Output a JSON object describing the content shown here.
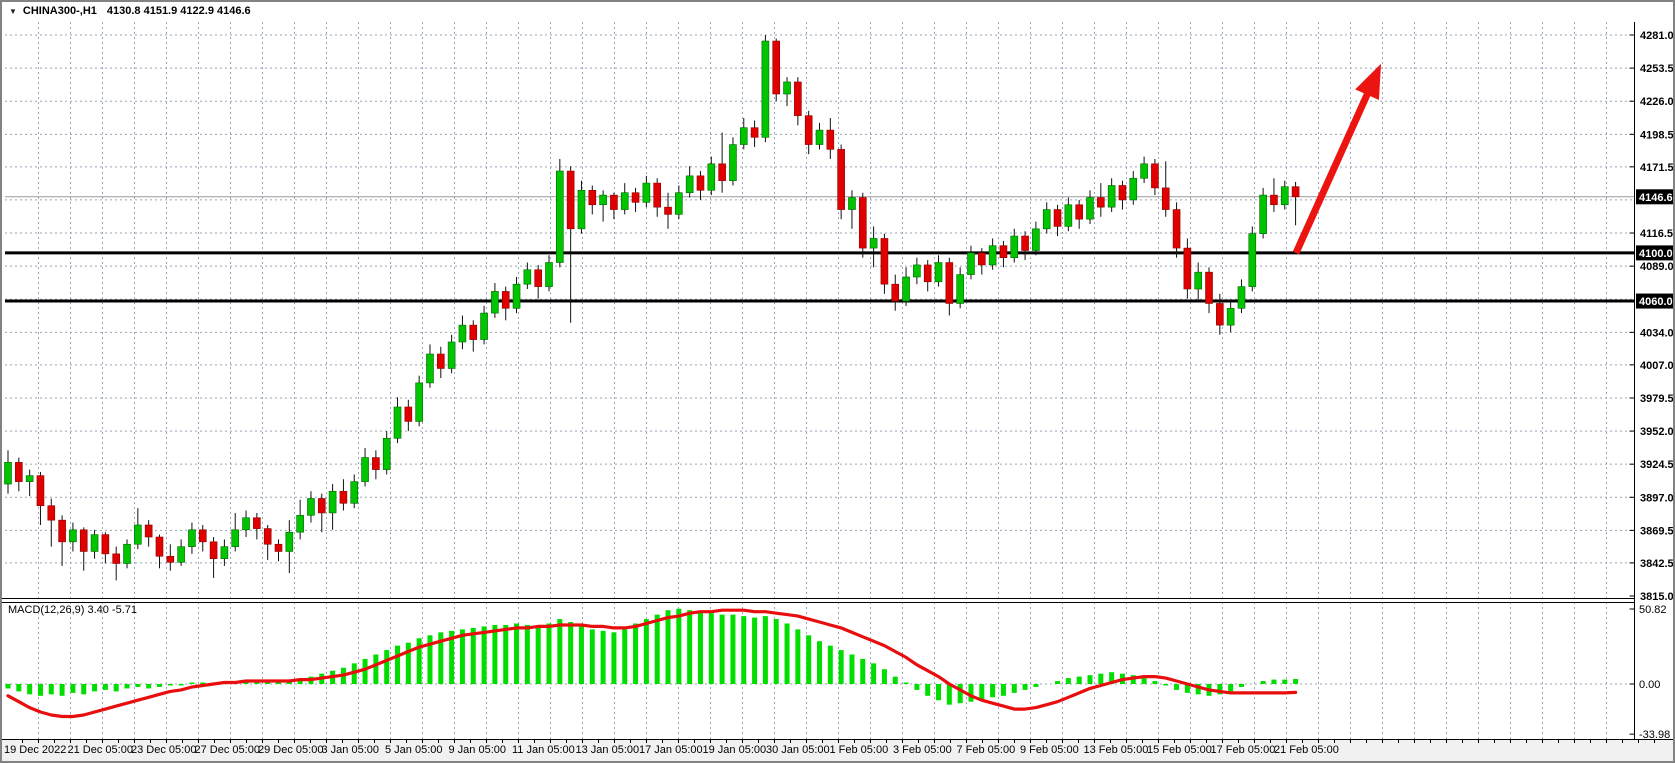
{
  "window": {
    "title": "CHINA300-,H1",
    "ohlc": "4130.8 4151.9 4122.9 4146.6"
  },
  "colors": {
    "bull": "#00C400",
    "bear": "#E00000",
    "wick": "#111111",
    "grid": "#97a5b6",
    "axis": "#000000",
    "macd_hist": "#00DE00",
    "macd_signal": "#E80E0E",
    "level_line": "#000000",
    "current_line": "#9a9a9a",
    "label_bg": "#000000",
    "label_fg": "#ffffff",
    "arrow": "#EC1410",
    "footer_bg": "#f1f1f1"
  },
  "chart_data": {
    "type": "candlestick",
    "symbol": "CHINA300-",
    "timeframe": "H1",
    "open": 4130.8,
    "high": 4151.9,
    "low": 4122.9,
    "close": 4146.6,
    "price_axis": {
      "min": 3815.0,
      "max": 4281.0,
      "labels": [
        {
          "value": 4281.0,
          "label": "4281.0"
        },
        {
          "value": 4253.5,
          "label": "4253.5"
        },
        {
          "value": 4226.0,
          "label": "4226.0"
        },
        {
          "value": 4198.5,
          "label": "4198.5"
        },
        {
          "value": 4171.5,
          "label": "4171.5"
        },
        {
          "value": 4116.5,
          "label": "4116.5"
        },
        {
          "value": 4089.0,
          "label": "4089.0"
        },
        {
          "value": 4034.0,
          "label": "4034.0"
        },
        {
          "value": 4007.0,
          "label": "4007.0"
        },
        {
          "value": 3979.5,
          "label": "3979.5"
        },
        {
          "value": 3952.0,
          "label": "3952.0"
        },
        {
          "value": 3924.5,
          "label": "3924.5"
        },
        {
          "value": 3897.0,
          "label": "3897.0"
        },
        {
          "value": 3869.5,
          "label": "3869.5"
        },
        {
          "value": 3842.5,
          "label": "3842.5"
        },
        {
          "value": 3815.0,
          "label": "3815.0"
        }
      ],
      "hidden_gridline_values": [
        4144.0,
        4061.5
      ]
    },
    "time_axis": {
      "labels": [
        "19 Dec 2022",
        "21 Dec 05:00",
        "23 Dec 05:00",
        "27 Dec 05:00",
        "29 Dec 05:00",
        "3 Jan 05:00",
        "5 Jan 05:00",
        "9 Jan 05:00",
        "11 Jan 05:00",
        "13 Jan 05:00",
        "17 Jan 05:00",
        "19 Jan 05:00",
        "30 Jan 05:00",
        "1 Feb 05:00",
        "3 Feb 05:00",
        "7 Feb 05:00",
        "9 Feb 05:00",
        "13 Feb 05:00",
        "15 Feb 05:00",
        "17 Feb 05:00",
        "21 Feb 05:00"
      ]
    },
    "current_price": {
      "value": 4146.6,
      "label": "4146.6"
    },
    "levels": [
      {
        "value": 4100.0,
        "label": "4100.0"
      },
      {
        "value": 4060.0,
        "label": "4060.0"
      }
    ],
    "annotation_arrow": {
      "direction": "up",
      "from_price": 4100.0,
      "to_price": 4253.0
    },
    "candles": [
      [
        3908,
        3936,
        3900,
        3926
      ],
      [
        3926,
        3930,
        3902,
        3910
      ],
      [
        3910,
        3920,
        3898,
        3915
      ],
      [
        3915,
        3918,
        3874,
        3890
      ],
      [
        3890,
        3896,
        3856,
        3878
      ],
      [
        3878,
        3882,
        3840,
        3860
      ],
      [
        3860,
        3876,
        3852,
        3870
      ],
      [
        3870,
        3872,
        3836,
        3852
      ],
      [
        3852,
        3870,
        3846,
        3866
      ],
      [
        3866,
        3868,
        3842,
        3850
      ],
      [
        3850,
        3856,
        3828,
        3842
      ],
      [
        3842,
        3862,
        3838,
        3858
      ],
      [
        3858,
        3888,
        3854,
        3874
      ],
      [
        3874,
        3878,
        3856,
        3864
      ],
      [
        3864,
        3866,
        3838,
        3848
      ],
      [
        3848,
        3858,
        3836,
        3843
      ],
      [
        3843,
        3862,
        3840,
        3856
      ],
      [
        3856,
        3876,
        3850,
        3870
      ],
      [
        3870,
        3874,
        3852,
        3860
      ],
      [
        3860,
        3864,
        3830,
        3846
      ],
      [
        3846,
        3862,
        3840,
        3856
      ],
      [
        3856,
        3884,
        3852,
        3870
      ],
      [
        3870,
        3886,
        3864,
        3880
      ],
      [
        3880,
        3884,
        3862,
        3871
      ],
      [
        3871,
        3874,
        3845,
        3858
      ],
      [
        3858,
        3862,
        3844,
        3852
      ],
      [
        3852,
        3878,
        3834,
        3868
      ],
      [
        3868,
        3895,
        3862,
        3882
      ],
      [
        3882,
        3902,
        3876,
        3896
      ],
      [
        3896,
        3900,
        3868,
        3884
      ],
      [
        3884,
        3908,
        3870,
        3902
      ],
      [
        3902,
        3912,
        3886,
        3892
      ],
      [
        3892,
        3916,
        3888,
        3910
      ],
      [
        3910,
        3938,
        3906,
        3930
      ],
      [
        3930,
        3936,
        3912,
        3920
      ],
      [
        3920,
        3952,
        3916,
        3946
      ],
      [
        3946,
        3980,
        3942,
        3972
      ],
      [
        3972,
        3978,
        3952,
        3960
      ],
      [
        3960,
        3998,
        3956,
        3992
      ],
      [
        3992,
        4024,
        3988,
        4016
      ],
      [
        4016,
        4022,
        3996,
        4004
      ],
      [
        4004,
        4032,
        4000,
        4026
      ],
      [
        4026,
        4048,
        4020,
        4040
      ],
      [
        4040,
        4044,
        4018,
        4028
      ],
      [
        4028,
        4056,
        4024,
        4050
      ],
      [
        4050,
        4075,
        4046,
        4068
      ],
      [
        4068,
        4072,
        4044,
        4054
      ],
      [
        4054,
        4080,
        4050,
        4074
      ],
      [
        4074,
        4092,
        4070,
        4086
      ],
      [
        4086,
        4090,
        4062,
        4072
      ],
      [
        4072,
        4098,
        4068,
        4092
      ],
      [
        4092,
        4178,
        4088,
        4168
      ],
      [
        4168,
        4172,
        4042,
        4120
      ],
      [
        4120,
        4160,
        4116,
        4152
      ],
      [
        4152,
        4156,
        4132,
        4140
      ],
      [
        4140,
        4152,
        4126,
        4148
      ],
      [
        4148,
        4150,
        4128,
        4136
      ],
      [
        4136,
        4158,
        4132,
        4150
      ],
      [
        4150,
        4154,
        4134,
        4142
      ],
      [
        4142,
        4164,
        4138,
        4158
      ],
      [
        4158,
        4162,
        4130,
        4138
      ],
      [
        4138,
        4150,
        4120,
        4132
      ],
      [
        4132,
        4156,
        4128,
        4150
      ],
      [
        4150,
        4172,
        4146,
        4164
      ],
      [
        4164,
        4168,
        4144,
        4152
      ],
      [
        4152,
        4180,
        4148,
        4174
      ],
      [
        4174,
        4200,
        4150,
        4160
      ],
      [
        4160,
        4196,
        4156,
        4190
      ],
      [
        4190,
        4212,
        4186,
        4204
      ],
      [
        4204,
        4210,
        4188,
        4196
      ],
      [
        4196,
        4281,
        4192,
        4276
      ],
      [
        4276,
        4278,
        4226,
        4232
      ],
      [
        4232,
        4246,
        4222,
        4242
      ],
      [
        4242,
        4246,
        4206,
        4214
      ],
      [
        4214,
        4218,
        4182,
        4190
      ],
      [
        4190,
        4208,
        4186,
        4202
      ],
      [
        4202,
        4212,
        4178,
        4186
      ],
      [
        4186,
        4190,
        4128,
        4136
      ],
      [
        4136,
        4152,
        4120,
        4146
      ],
      [
        4146,
        4150,
        4096,
        4104
      ],
      [
        4104,
        4122,
        4088,
        4112
      ],
      [
        4112,
        4116,
        4066,
        4074
      ],
      [
        4074,
        4082,
        4052,
        4060
      ],
      [
        4060,
        4088,
        4056,
        4080
      ],
      [
        4080,
        4096,
        4074,
        4090
      ],
      [
        4090,
        4094,
        4068,
        4076
      ],
      [
        4076,
        4098,
        4072,
        4092
      ],
      [
        4092,
        4096,
        4048,
        4058
      ],
      [
        4058,
        4088,
        4054,
        4082
      ],
      [
        4082,
        4106,
        4078,
        4100
      ],
      [
        4100,
        4104,
        4082,
        4090
      ],
      [
        4090,
        4112,
        4086,
        4106
      ],
      [
        4106,
        4110,
        4088,
        4096
      ],
      [
        4096,
        4120,
        4092,
        4114
      ],
      [
        4114,
        4118,
        4094,
        4102
      ],
      [
        4102,
        4126,
        4098,
        4120
      ],
      [
        4120,
        4142,
        4116,
        4136
      ],
      [
        4136,
        4140,
        4114,
        4122
      ],
      [
        4122,
        4146,
        4118,
        4140
      ],
      [
        4140,
        4144,
        4120,
        4128
      ],
      [
        4128,
        4152,
        4124,
        4146
      ],
      [
        4146,
        4158,
        4130,
        4138
      ],
      [
        4138,
        4162,
        4134,
        4156
      ],
      [
        4156,
        4160,
        4136,
        4144
      ],
      [
        4144,
        4168,
        4140,
        4162
      ],
      [
        4162,
        4180,
        4158,
        4174
      ],
      [
        4174,
        4178,
        4148,
        4154
      ],
      [
        4154,
        4176,
        4130,
        4136
      ],
      [
        4136,
        4142,
        4096,
        4104
      ],
      [
        4104,
        4112,
        4062,
        4070
      ],
      [
        4070,
        4092,
        4060,
        4084
      ],
      [
        4084,
        4088,
        4050,
        4058
      ],
      [
        4058,
        4066,
        4032,
        4040
      ],
      [
        4040,
        4060,
        4034,
        4054
      ],
      [
        4054,
        4078,
        4050,
        4072
      ],
      [
        4072,
        4122,
        4068,
        4116
      ],
      [
        4116,
        4154,
        4112,
        4148
      ],
      [
        4148,
        4162,
        4134,
        4140
      ],
      [
        4140,
        4160,
        4136,
        4155
      ],
      [
        4155,
        4159,
        4123,
        4146.6
      ]
    ],
    "indicator": {
      "name": "MACD",
      "label": "MACD(12,26,9) 3.40 -5.71",
      "params": "12,26,9",
      "macd_value": 3.4,
      "signal_value": -5.71,
      "axis_labels": [
        {
          "value": 50.82,
          "label": "50.82"
        },
        {
          "value": 0.0,
          "label": "0.00"
        },
        {
          "value": -33.98,
          "label": "-33.98"
        }
      ],
      "histogram": [
        -3,
        -5,
        -7,
        -8,
        -7,
        -8,
        -6,
        -7,
        -5,
        -4,
        -5,
        -3,
        -2,
        -3,
        -2,
        -1,
        -1,
        1,
        1,
        -1,
        1,
        2,
        2,
        1,
        1,
        1,
        2,
        3,
        5,
        7,
        9,
        11,
        14,
        17,
        20,
        23,
        26,
        28,
        31,
        33,
        35,
        36,
        37,
        38,
        39,
        40,
        40,
        41,
        40,
        40,
        41,
        44,
        42,
        39,
        37,
        36,
        35,
        37,
        41,
        44,
        47,
        50,
        51,
        50,
        49,
        48,
        47,
        47,
        46,
        45,
        46,
        44,
        41,
        37,
        33,
        29,
        26,
        23,
        20,
        17,
        14,
        10,
        5,
        1,
        -4,
        -8,
        -11,
        -14,
        -13,
        -12,
        -11,
        -9,
        -8,
        -6,
        -4,
        -2,
        0,
        2,
        4,
        5,
        6,
        7,
        8,
        7,
        6,
        4,
        2,
        -1,
        -4,
        -6,
        -7,
        -8,
        -7,
        -5,
        -2,
        0,
        2,
        3,
        3,
        3.4
      ],
      "signal": [
        -8,
        -12,
        -16,
        -19,
        -21,
        -22,
        -22,
        -21,
        -19,
        -17,
        -15,
        -13,
        -11,
        -9,
        -7,
        -5,
        -4,
        -2,
        -1,
        0,
        1,
        1,
        2,
        2,
        2,
        2,
        2,
        3,
        3,
        4,
        5,
        6,
        8,
        10,
        13,
        16,
        19,
        22,
        25,
        27,
        29,
        31,
        33,
        34,
        35,
        36,
        37,
        38,
        38,
        39,
        39,
        40,
        40,
        40,
        39,
        39,
        38,
        38,
        39,
        41,
        43,
        45,
        46,
        48,
        49,
        49,
        50,
        50,
        50,
        49,
        49,
        48,
        47,
        46,
        44,
        42,
        40,
        38,
        35,
        32,
        29,
        26,
        22,
        18,
        13,
        9,
        5,
        0,
        -4,
        -8,
        -11,
        -13,
        -15,
        -17,
        -17,
        -16,
        -14,
        -12,
        -9,
        -6,
        -3,
        -1,
        1,
        3,
        4,
        5,
        5,
        4,
        2,
        0,
        -2,
        -4,
        -5,
        -6,
        -6,
        -6,
        -6,
        -6,
        -6,
        -5.71
      ]
    }
  }
}
